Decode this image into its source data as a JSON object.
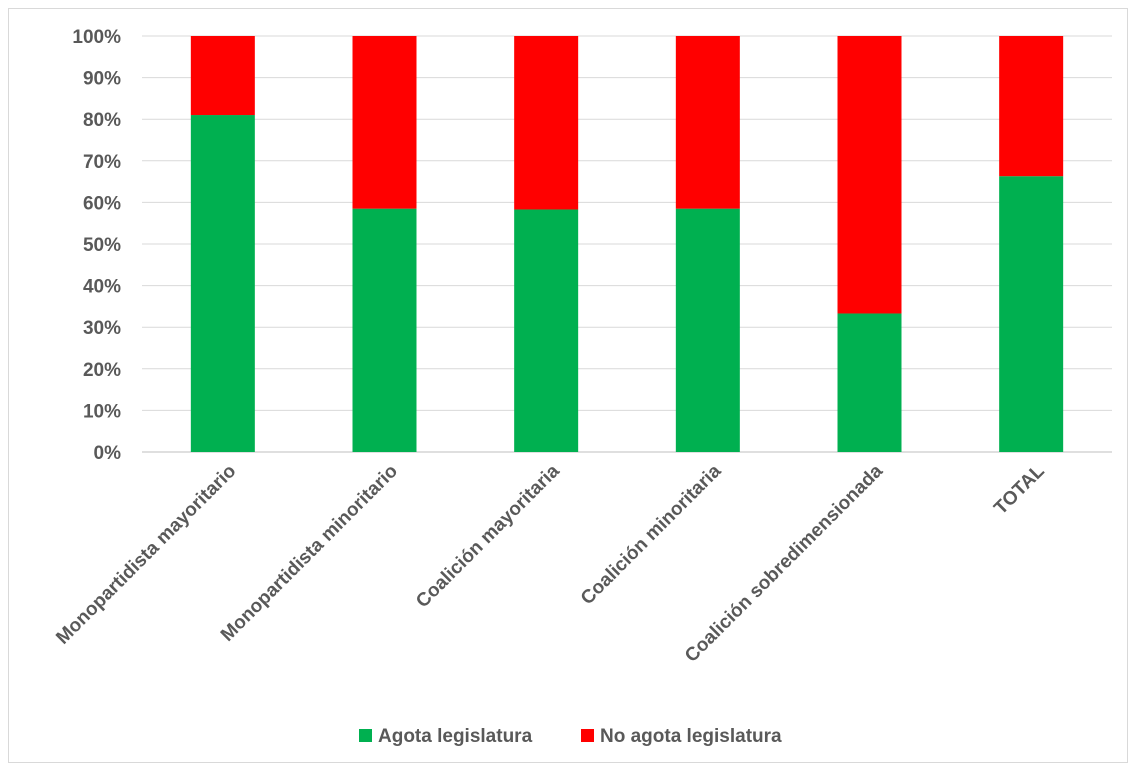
{
  "chart_data": {
    "type": "bar",
    "stacked": true,
    "normalized_percent": true,
    "categories": [
      "Monopartidista mayoritario",
      "Monopartidista minoritario",
      "Coalición mayoritaria",
      "Coalición minoritaria",
      "Coalición sobredimensionada",
      "TOTAL"
    ],
    "series": [
      {
        "name": "Agota legislatura",
        "color": "#00b050",
        "values": [
          81,
          58.5,
          58.3,
          58.5,
          33.3,
          66.3
        ]
      },
      {
        "name": "No agota legislatura",
        "color": "#ff0000",
        "values": [
          19,
          41.5,
          41.7,
          41.5,
          66.7,
          33.7
        ]
      }
    ],
    "yticks": [
      "0%",
      "10%",
      "20%",
      "30%",
      "40%",
      "50%",
      "60%",
      "70%",
      "80%",
      "90%",
      "100%"
    ],
    "ylim": [
      0,
      100
    ],
    "title": "",
    "xlabel": "",
    "ylabel": "",
    "grid": true,
    "legend_position": "bottom"
  }
}
